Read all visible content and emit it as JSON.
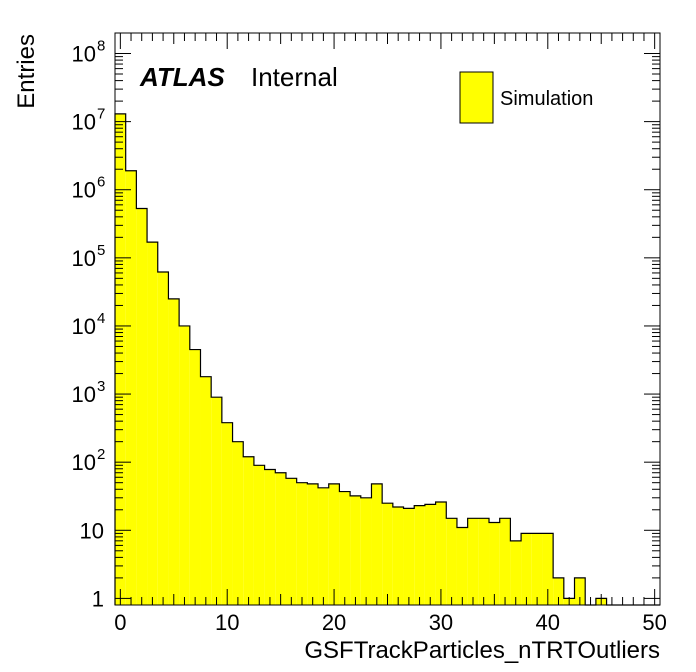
{
  "chart_data": {
    "type": "bar",
    "style": "histogram",
    "xlabel": "GSFTrackParticles_nTRTOutliers",
    "ylabel": "Entries",
    "x_tick_labels": [
      "0",
      "10",
      "20",
      "30",
      "40",
      "50"
    ],
    "y_tick_labels": [
      {
        "base": "1",
        "exp": ""
      },
      {
        "base": "10",
        "exp": ""
      },
      {
        "base": "10",
        "exp": "2"
      },
      {
        "base": "10",
        "exp": "3"
      },
      {
        "base": "10",
        "exp": "4"
      },
      {
        "base": "10",
        "exp": "5"
      },
      {
        "base": "10",
        "exp": "6"
      },
      {
        "base": "10",
        "exp": "7"
      },
      {
        "base": "10",
        "exp": "8"
      }
    ],
    "xlim": [
      -0.5,
      50.5
    ],
    "ylim": [
      0.8,
      200000000
    ],
    "yscale": "log",
    "label_atlas": "ATLAS",
    "label_internal": "Internal",
    "legend": [
      {
        "name": "Simulation",
        "color": "#ffff00",
        "edge": "#000000"
      }
    ],
    "legend_position": "top-right",
    "series": [
      {
        "name": "Simulation",
        "color": "#ffff00",
        "bin_width": 1,
        "bin_starts": [
          -0.5,
          0.5,
          1.5,
          2.5,
          3.5,
          4.5,
          5.5,
          6.5,
          7.5,
          8.5,
          9.5,
          10.5,
          11.5,
          12.5,
          13.5,
          14.5,
          15.5,
          16.5,
          17.5,
          18.5,
          19.5,
          20.5,
          21.5,
          22.5,
          23.5,
          24.5,
          25.5,
          26.5,
          27.5,
          28.5,
          29.5,
          30.5,
          31.5,
          32.5,
          33.5,
          34.5,
          35.5,
          36.5,
          37.5,
          38.5,
          39.5,
          40.5,
          41.5,
          42.5,
          43.5,
          44.5,
          45.5,
          46.5,
          47.5,
          48.5,
          49.5
        ],
        "values": [
          13000000,
          1900000,
          530000,
          170000,
          62000,
          25000,
          10000,
          4500,
          1800,
          900,
          380,
          200,
          120,
          90,
          78,
          70,
          58,
          50,
          48,
          42,
          48,
          37,
          32,
          30,
          48,
          25,
          22,
          21,
          23,
          24,
          26,
          15,
          11,
          15,
          15,
          13,
          15,
          7,
          9,
          9,
          9,
          2,
          1,
          2,
          0,
          1,
          0,
          0,
          0,
          0,
          0
        ]
      }
    ]
  }
}
